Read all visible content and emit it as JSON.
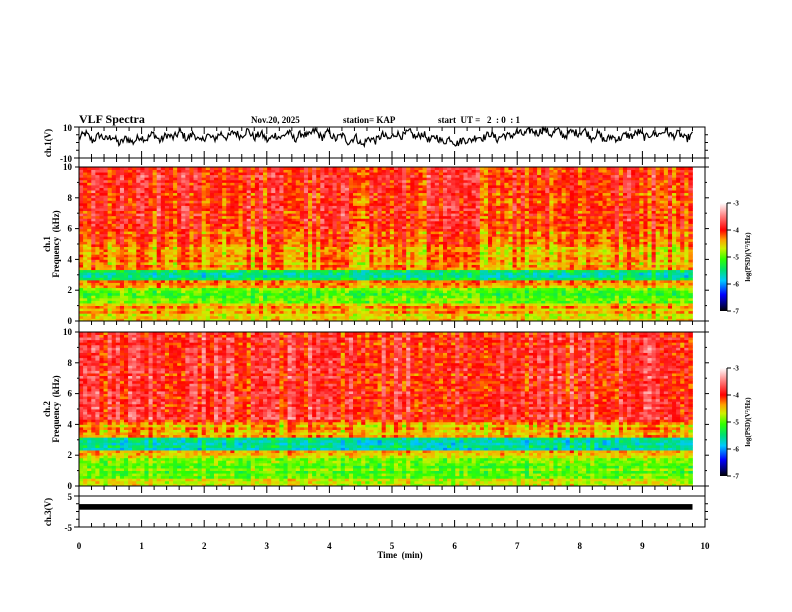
{
  "header": {
    "title": "VLF Spectra",
    "date": "Nov.20, 2025",
    "station": "station= KAP",
    "start_ut": "start  UT =   2  : 0  : 1"
  },
  "chart_data": [
    {
      "type": "line",
      "name": "ch1-waveform",
      "ylabel": "ch.1(V)",
      "ylim": [
        -10,
        10
      ],
      "yticks": [
        "10",
        "-10"
      ],
      "xlim": [
        0,
        10
      ],
      "data_end_min": 9.8,
      "description_values": "noisy waveform oscillating roughly between -4 and 9 V",
      "samples": [
        3,
        6,
        1,
        5,
        2,
        4,
        -1,
        3,
        0,
        4,
        2,
        6,
        1,
        5,
        3,
        7,
        2,
        6,
        0,
        5,
        2,
        6,
        3,
        7,
        4,
        8,
        3,
        6,
        1,
        5,
        3,
        7,
        2,
        6,
        4,
        8,
        3,
        7,
        2,
        5,
        0,
        4,
        -2,
        3,
        1,
        5,
        2,
        6,
        4,
        7,
        3,
        6,
        1,
        4,
        0,
        3,
        -1,
        2,
        1,
        4,
        3,
        6,
        2,
        5,
        4,
        7,
        5,
        8,
        6,
        9,
        5,
        8,
        4,
        7,
        6,
        8,
        3,
        6,
        1,
        4,
        2,
        5,
        4,
        7,
        3,
        6,
        5,
        8,
        4,
        6,
        2,
        5
      ]
    },
    {
      "type": "heatmap",
      "name": "ch1-spectrogram",
      "ylabel_line1": "ch.1",
      "ylabel_line2": "Frequency  (kHz)",
      "ylim": [
        0,
        10
      ],
      "yticks": [
        "0",
        "2",
        "4",
        "6",
        "8",
        "10"
      ],
      "xlim": [
        0,
        10
      ],
      "data_end_min": 9.8,
      "band_profile_kHz": [
        {
          "from": 0.0,
          "to": 0.5,
          "level": -4.6
        },
        {
          "from": 0.5,
          "to": 1.2,
          "level": -4.4
        },
        {
          "from": 1.2,
          "to": 2.1,
          "level": -5.0
        },
        {
          "from": 2.1,
          "to": 2.6,
          "level": -4.3
        },
        {
          "from": 2.6,
          "to": 3.4,
          "level": -5.5
        },
        {
          "from": 3.4,
          "to": 4.8,
          "level": -4.4
        },
        {
          "from": 4.8,
          "to": 6.0,
          "level": -4.2
        },
        {
          "from": 6.0,
          "to": 10.0,
          "level": -4.0
        }
      ]
    },
    {
      "type": "heatmap",
      "name": "ch2-spectrogram",
      "ylabel_line1": "ch.2",
      "ylabel_line2": "Frequency  (kHz)",
      "ylim": [
        0,
        10
      ],
      "yticks": [
        "0",
        "2",
        "4",
        "6",
        "8",
        "10"
      ],
      "xlim": [
        0,
        10
      ],
      "data_end_min": 9.8,
      "band_profile_kHz": [
        {
          "from": 0.0,
          "to": 0.5,
          "level": -4.6
        },
        {
          "from": 0.5,
          "to": 1.9,
          "level": -5.0
        },
        {
          "from": 1.9,
          "to": 2.3,
          "level": -4.5
        },
        {
          "from": 2.3,
          "to": 3.1,
          "level": -5.6
        },
        {
          "from": 3.1,
          "to": 4.2,
          "level": -4.4
        },
        {
          "from": 4.2,
          "to": 10.0,
          "level": -3.9
        }
      ]
    },
    {
      "type": "line",
      "name": "ch3-waveform",
      "ylabel": "ch.3(V)",
      "ylim": [
        -5,
        5
      ],
      "yticks": [
        "5",
        "-5"
      ],
      "xlim": [
        0,
        10
      ],
      "data_end_min": 9.8,
      "value": 1.5,
      "thickness_V": 1.0
    }
  ],
  "colorbar": {
    "label": "log(PSD)(V²/Hz)",
    "range": [
      -7,
      -3
    ],
    "ticks": [
      "-3",
      "-4",
      "-5",
      "-6",
      "-7"
    ]
  },
  "xaxis": {
    "label": "Time  (min)",
    "ticks": [
      "0",
      "1",
      "2",
      "3",
      "4",
      "5",
      "6",
      "7",
      "8",
      "9",
      "10"
    ]
  }
}
